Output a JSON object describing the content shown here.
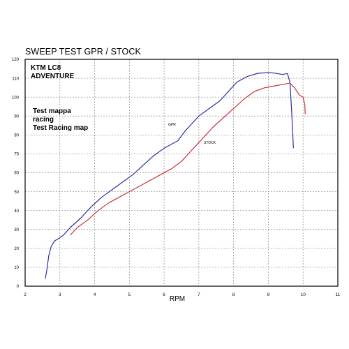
{
  "title": "SWEEP TEST  GPR / STOCK",
  "annotations": {
    "model_line1": "KTM LC8",
    "model_line2": "ADVENTURE",
    "test_line1": "Test mappa",
    "test_line2": "racing",
    "test_line3": "Test Racing map",
    "gpr_label": "GPR",
    "stock_label": "STOCK"
  },
  "colors": {
    "gpr": "#2b2fa0",
    "stock": "#c8323c",
    "grid": "#8a8a8a",
    "frame": "#000000"
  },
  "chart_data": {
    "type": "line",
    "title": "SWEEP TEST  GPR / STOCK",
    "xlabel": "RPM",
    "ylabel": "",
    "xlim": [
      2,
      11
    ],
    "ylim": [
      0,
      120
    ],
    "xticks": [
      2,
      3,
      4,
      5,
      6,
      7,
      8,
      9,
      10,
      11
    ],
    "yticks": [
      0,
      10,
      20,
      30,
      40,
      50,
      60,
      70,
      80,
      90,
      100,
      110,
      120
    ],
    "grid": true,
    "series": [
      {
        "name": "GPR",
        "color": "#2b2fa0",
        "points": [
          [
            2.58,
            4
          ],
          [
            2.62,
            8
          ],
          [
            2.68,
            16
          ],
          [
            2.75,
            21
          ],
          [
            2.85,
            24
          ],
          [
            2.95,
            25
          ],
          [
            3.1,
            27
          ],
          [
            3.3,
            31
          ],
          [
            3.6,
            36
          ],
          [
            3.9,
            42
          ],
          [
            4.2,
            47
          ],
          [
            4.5,
            51
          ],
          [
            4.8,
            55
          ],
          [
            5.1,
            59
          ],
          [
            5.4,
            64
          ],
          [
            5.7,
            69
          ],
          [
            6.0,
            73
          ],
          [
            6.2,
            75
          ],
          [
            6.4,
            77
          ],
          [
            6.6,
            82
          ],
          [
            6.8,
            86
          ],
          [
            7.0,
            90
          ],
          [
            7.3,
            94
          ],
          [
            7.6,
            98
          ],
          [
            7.9,
            104
          ],
          [
            8.1,
            108
          ],
          [
            8.4,
            111
          ],
          [
            8.7,
            112.6
          ],
          [
            9.0,
            113
          ],
          [
            9.2,
            112.7
          ],
          [
            9.4,
            112
          ],
          [
            9.55,
            112.5
          ],
          [
            9.62,
            108
          ],
          [
            9.66,
            96
          ],
          [
            9.7,
            82
          ],
          [
            9.72,
            73
          ]
        ]
      },
      {
        "name": "STOCK",
        "color": "#c8323c",
        "points": [
          [
            3.3,
            27
          ],
          [
            3.5,
            31
          ],
          [
            3.8,
            35
          ],
          [
            4.1,
            40
          ],
          [
            4.4,
            44
          ],
          [
            4.7,
            47
          ],
          [
            5.0,
            50
          ],
          [
            5.3,
            53
          ],
          [
            5.6,
            56
          ],
          [
            5.9,
            59
          ],
          [
            6.2,
            62
          ],
          [
            6.5,
            66
          ],
          [
            6.8,
            72
          ],
          [
            7.1,
            78
          ],
          [
            7.4,
            84
          ],
          [
            7.7,
            89
          ],
          [
            8.0,
            94
          ],
          [
            8.3,
            99
          ],
          [
            8.6,
            103
          ],
          [
            8.9,
            105
          ],
          [
            9.2,
            106
          ],
          [
            9.5,
            107
          ],
          [
            9.62,
            107.5
          ],
          [
            9.75,
            105
          ],
          [
            9.9,
            101
          ],
          [
            10.0,
            100
          ],
          [
            10.05,
            96
          ],
          [
            10.06,
            91
          ]
        ]
      }
    ]
  }
}
